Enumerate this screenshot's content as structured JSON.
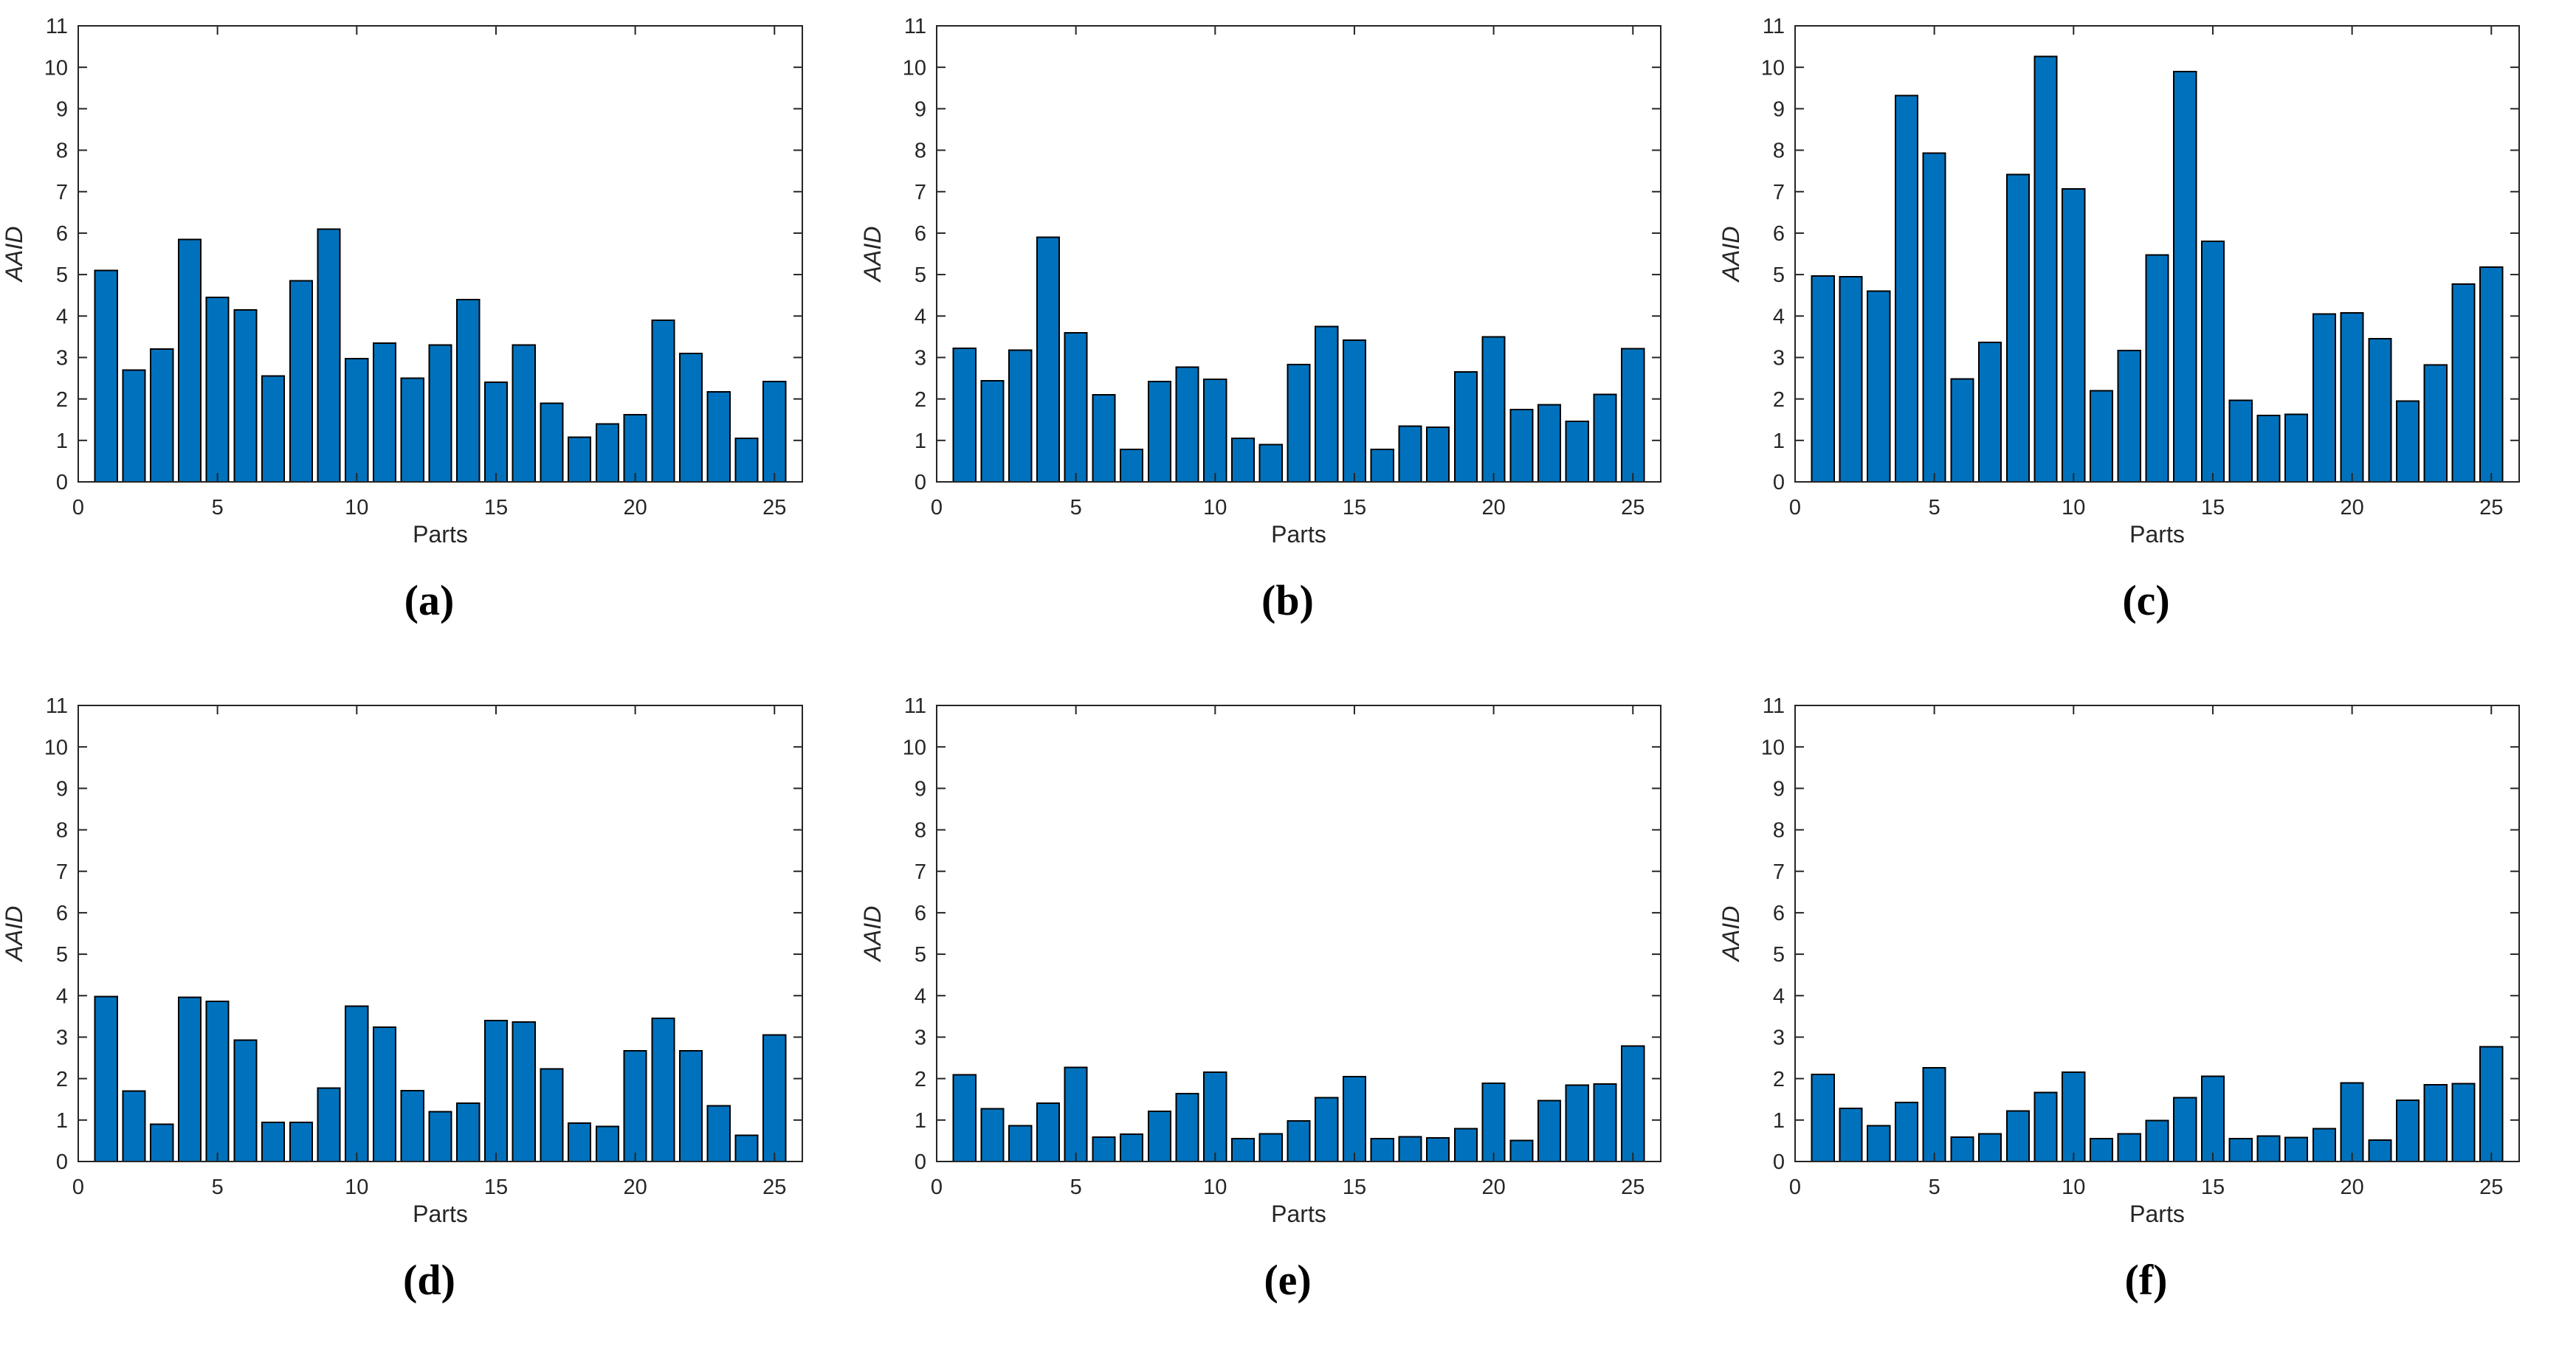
{
  "figure": {
    "panel_captions": [
      "(a)",
      "(b)",
      "(c)",
      "(d)",
      "(e)",
      "(f)"
    ]
  },
  "chart_data": [
    {
      "type": "bar",
      "caption": "(a)",
      "xlabel": "Parts",
      "ylabel": "AAID",
      "xlim": [
        0,
        26
      ],
      "ylim": [
        0,
        11
      ],
      "xticks": [
        0,
        5,
        10,
        15,
        20,
        25
      ],
      "yticks": [
        0,
        1,
        2,
        3,
        4,
        5,
        6,
        7,
        8,
        9,
        10,
        11
      ],
      "grid": false,
      "bar_color": "#0072BD",
      "bar_edge_color": "#000000",
      "axis_color": "#262626",
      "categories": [
        1,
        2,
        3,
        4,
        5,
        6,
        7,
        8,
        9,
        10,
        11,
        12,
        13,
        14,
        15,
        16,
        17,
        18,
        19,
        20,
        21,
        22,
        23,
        24,
        25
      ],
      "values": [
        5.1,
        2.7,
        3.2,
        5.85,
        4.45,
        4.15,
        2.55,
        4.85,
        6.1,
        2.97,
        3.35,
        2.5,
        3.3,
        4.4,
        2.4,
        3.3,
        1.9,
        1.08,
        1.4,
        1.62,
        3.9,
        3.1,
        2.17,
        1.05,
        2.42
      ]
    },
    {
      "type": "bar",
      "caption": "(b)",
      "xlabel": "Parts",
      "ylabel": "AAID",
      "xlim": [
        0,
        26
      ],
      "ylim": [
        0,
        11
      ],
      "xticks": [
        0,
        5,
        10,
        15,
        20,
        25
      ],
      "yticks": [
        0,
        1,
        2,
        3,
        4,
        5,
        6,
        7,
        8,
        9,
        10,
        11
      ],
      "grid": false,
      "bar_color": "#0072BD",
      "bar_edge_color": "#000000",
      "axis_color": "#262626",
      "categories": [
        1,
        2,
        3,
        4,
        5,
        6,
        7,
        8,
        9,
        10,
        11,
        12,
        13,
        14,
        15,
        16,
        17,
        18,
        19,
        20,
        21,
        22,
        23,
        24,
        25
      ],
      "values": [
        3.22,
        2.44,
        3.18,
        5.9,
        3.6,
        2.1,
        0.78,
        2.42,
        2.77,
        2.47,
        1.05,
        0.9,
        2.83,
        3.75,
        3.42,
        0.78,
        1.34,
        1.32,
        2.65,
        3.5,
        1.74,
        1.86,
        1.46,
        2.11,
        3.21
      ]
    },
    {
      "type": "bar",
      "caption": "(c)",
      "xlabel": "Parts",
      "ylabel": "AAID",
      "xlim": [
        0,
        26
      ],
      "ylim": [
        0,
        11
      ],
      "xticks": [
        0,
        5,
        10,
        15,
        20,
        25
      ],
      "yticks": [
        0,
        1,
        2,
        3,
        4,
        5,
        6,
        7,
        8,
        9,
        10,
        11
      ],
      "grid": false,
      "bar_color": "#0072BD",
      "bar_edge_color": "#000000",
      "axis_color": "#262626",
      "categories": [
        1,
        2,
        3,
        4,
        5,
        6,
        7,
        8,
        9,
        10,
        11,
        12,
        13,
        14,
        15,
        16,
        17,
        18,
        19,
        20,
        21,
        22,
        23,
        24,
        25
      ],
      "values": [
        4.97,
        4.95,
        4.6,
        9.32,
        7.93,
        2.48,
        3.36,
        7.41,
        10.26,
        7.07,
        2.2,
        3.17,
        5.47,
        9.9,
        5.8,
        1.97,
        1.6,
        1.63,
        4.05,
        4.08,
        3.45,
        1.95,
        2.82,
        4.77,
        5.18
      ]
    },
    {
      "type": "bar",
      "caption": "(d)",
      "xlabel": "Parts",
      "ylabel": "AAID",
      "xlim": [
        0,
        26
      ],
      "ylim": [
        0,
        11
      ],
      "xticks": [
        0,
        5,
        10,
        15,
        20,
        25
      ],
      "yticks": [
        0,
        1,
        2,
        3,
        4,
        5,
        6,
        7,
        8,
        9,
        10,
        11
      ],
      "grid": false,
      "bar_color": "#0072BD",
      "bar_edge_color": "#000000",
      "axis_color": "#262626",
      "categories": [
        1,
        2,
        3,
        4,
        5,
        6,
        7,
        8,
        9,
        10,
        11,
        12,
        13,
        14,
        15,
        16,
        17,
        18,
        19,
        20,
        21,
        22,
        23,
        24,
        25
      ],
      "values": [
        3.98,
        1.7,
        0.9,
        3.96,
        3.86,
        2.93,
        0.94,
        0.94,
        1.77,
        3.75,
        3.24,
        1.71,
        1.2,
        1.41,
        3.4,
        3.36,
        2.23,
        0.93,
        0.85,
        2.67,
        3.45,
        2.67,
        1.34,
        0.63,
        3.05
      ]
    },
    {
      "type": "bar",
      "caption": "(e)",
      "xlabel": "Parts",
      "ylabel": "AAID",
      "xlim": [
        0,
        26
      ],
      "ylim": [
        0,
        11
      ],
      "xticks": [
        0,
        5,
        10,
        15,
        20,
        25
      ],
      "yticks": [
        0,
        1,
        2,
        3,
        4,
        5,
        6,
        7,
        8,
        9,
        10,
        11
      ],
      "grid": false,
      "bar_color": "#0072BD",
      "bar_edge_color": "#000000",
      "axis_color": "#262626",
      "categories": [
        1,
        2,
        3,
        4,
        5,
        6,
        7,
        8,
        9,
        10,
        11,
        12,
        13,
        14,
        15,
        16,
        17,
        18,
        19,
        20,
        21,
        22,
        23,
        24,
        25
      ],
      "values": [
        2.09,
        1.27,
        0.86,
        1.41,
        2.27,
        0.59,
        0.66,
        1.21,
        1.64,
        2.15,
        0.55,
        0.67,
        0.98,
        1.54,
        2.05,
        0.55,
        0.6,
        0.57,
        0.79,
        1.89,
        0.51,
        1.47,
        1.84,
        1.87,
        2.79
      ]
    },
    {
      "type": "bar",
      "caption": "(f)",
      "xlabel": "Parts",
      "ylabel": "AAID",
      "xlim": [
        0,
        26
      ],
      "ylim": [
        0,
        11
      ],
      "xticks": [
        0,
        5,
        10,
        15,
        20,
        25
      ],
      "yticks": [
        0,
        1,
        2,
        3,
        4,
        5,
        6,
        7,
        8,
        9,
        10,
        11
      ],
      "grid": false,
      "bar_color": "#0072BD",
      "bar_edge_color": "#000000",
      "axis_color": "#262626",
      "categories": [
        1,
        2,
        3,
        4,
        5,
        6,
        7,
        8,
        9,
        10,
        11,
        12,
        13,
        14,
        15,
        16,
        17,
        18,
        19,
        20,
        21,
        22,
        23,
        24,
        25
      ],
      "values": [
        2.1,
        1.28,
        0.86,
        1.42,
        2.26,
        0.59,
        0.67,
        1.22,
        1.66,
        2.15,
        0.55,
        0.67,
        0.99,
        1.54,
        2.06,
        0.55,
        0.61,
        0.58,
        0.79,
        1.9,
        0.52,
        1.48,
        1.85,
        1.88,
        2.77
      ]
    }
  ]
}
